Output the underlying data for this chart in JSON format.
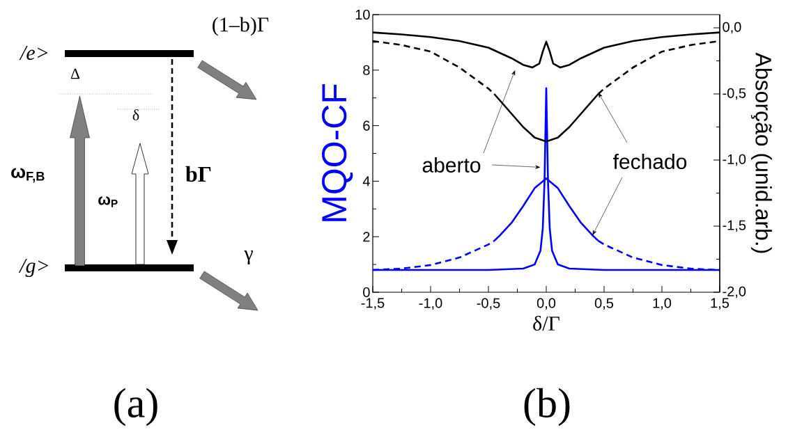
{
  "chart_data": [
    {
      "type": "other",
      "title": "(a)",
      "annotations": [
        "/e>",
        "/g>",
        "Δ",
        "δ",
        "ω$_{F,B}$",
        "ω$_{P}$",
        "bΓ",
        "(1–b)Γ",
        "γ"
      ]
    },
    {
      "type": "line",
      "title": "(b)",
      "xlabel": "δ/Γ",
      "ylabel": "MQO-CF",
      "y2label": "Absorção (unid.arb.)",
      "annotations": [
        {
          "text": "aberto",
          "x": -0.05,
          "y": 4.5
        },
        {
          "text": "fechado",
          "x": 0.4,
          "y": 2.05
        }
      ],
      "xlim": [
        -1.5,
        1.5
      ],
      "xticks": [
        {
          "value": -1.5,
          "label": "-1,5"
        },
        {
          "value": -1.0,
          "label": "-1,0"
        },
        {
          "value": -0.5,
          "label": "-0,5"
        },
        {
          "value": 0,
          "label": "0,0"
        },
        {
          "value": 0.5,
          "label": "0,5"
        },
        {
          "value": 1.0,
          "label": "1,0"
        },
        {
          "value": 1.5,
          "label": "1,5"
        }
      ],
      "ylim": [
        0,
        10
      ],
      "yticks": [
        0,
        2,
        4,
        6,
        8,
        10
      ],
      "y2lim": [
        -2.0,
        0.1
      ],
      "y2ticks": [
        {
          "value": 0,
          "label": "0,0"
        },
        {
          "value": -0.5,
          "label": "-0,5"
        },
        {
          "value": -1.0,
          "label": "-1,0"
        },
        {
          "value": -1.5,
          "label": "-1,5"
        },
        {
          "value": -2.0,
          "label": "-2,0"
        }
      ],
      "series": [
        {
          "color": "#0000ff",
          "axis": "y",
          "line_style": "solid",
          "x": [
            -1.5,
            -1,
            -0.5,
            -0.2,
            -0.1,
            -0.05,
            -0.03,
            -0.015,
            0,
            0.015,
            0.03,
            0.05,
            0.1,
            0.2,
            0.5,
            1,
            1.5
          ],
          "values": [
            0.8,
            0.8,
            0.8,
            0.85,
            1.0,
            1.5,
            2.3,
            4.0,
            7.35,
            4.0,
            2.3,
            1.5,
            1.0,
            0.85,
            0.8,
            0.8,
            0.8
          ]
        },
        {
          "color": "#0000ff",
          "axis": "y",
          "line_style": "solid",
          "x": [
            -0.45,
            -0.4,
            -0.3,
            -0.2,
            -0.1,
            0,
            0.1,
            0.2,
            0.3,
            0.4,
            0.45
          ],
          "values": [
            1.85,
            2.05,
            2.5,
            3.1,
            3.75,
            4.1,
            3.75,
            3.1,
            2.5,
            2.05,
            1.85
          ]
        },
        {
          "color": "#0000ff",
          "axis": "y",
          "line_style": "dashed",
          "x": [
            -1.5,
            -1.25,
            -1.0,
            -0.75,
            -0.5,
            -0.45,
            0,
            0.45,
            0.5,
            0.75,
            1.0,
            1.25,
            1.5
          ],
          "values": [
            0.8,
            0.85,
            0.98,
            1.25,
            1.72,
            1.85,
            null,
            1.85,
            1.72,
            1.25,
            0.98,
            0.85,
            0.8
          ]
        },
        {
          "color": "#000000",
          "axis": "y2",
          "line_style": "solid",
          "x": [
            -1.5,
            -1.25,
            -1,
            -0.75,
            -0.5,
            -0.3,
            -0.2,
            -0.12,
            -0.06,
            -0.03,
            0,
            0.03,
            0.06,
            0.12,
            0.2,
            0.3,
            0.5,
            0.75,
            1,
            1.25,
            1.5
          ],
          "values": [
            -0.035,
            -0.05,
            -0.07,
            -0.1,
            -0.15,
            -0.23,
            -0.28,
            -0.3,
            -0.27,
            -0.18,
            -0.105,
            -0.18,
            -0.27,
            -0.3,
            -0.28,
            -0.23,
            -0.15,
            -0.1,
            -0.07,
            -0.05,
            -0.035
          ]
        },
        {
          "color": "#000000",
          "axis": "y2",
          "line_style": "solid",
          "x": [
            -0.45,
            -0.4,
            -0.3,
            -0.2,
            -0.1,
            0,
            0.1,
            0.2,
            0.3,
            0.4,
            0.45
          ],
          "values": [
            -0.5,
            -0.55,
            -0.65,
            -0.75,
            -0.83,
            -0.86,
            -0.83,
            -0.75,
            -0.65,
            -0.55,
            -0.5
          ]
        },
        {
          "color": "#000000",
          "axis": "y2",
          "line_style": "dashed",
          "x": [
            -1.5,
            -1.25,
            -1.0,
            -0.75,
            -0.5,
            -0.45,
            0,
            0.45,
            0.5,
            0.75,
            1.0,
            1.25,
            1.5
          ],
          "values": [
            -0.1,
            -0.13,
            -0.18,
            -0.3,
            -0.46,
            -0.5,
            null,
            -0.5,
            -0.46,
            -0.3,
            -0.18,
            -0.13,
            -0.1
          ]
        }
      ]
    }
  ]
}
